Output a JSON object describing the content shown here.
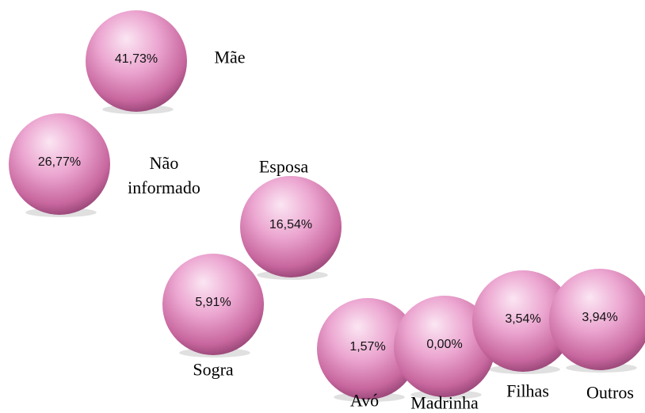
{
  "chart_data": {
    "type": "bubble",
    "categories": [
      "Mãe",
      "Não informado",
      "Esposa",
      "Sogra",
      "Avó",
      "Madrinha",
      "Filhas",
      "Outros"
    ],
    "values": [
      41.73,
      26.77,
      16.54,
      5.91,
      1.57,
      0.0,
      3.54,
      3.94
    ],
    "value_labels": [
      "41,73%",
      "26,77%",
      "16,54%",
      "5,91%",
      "1,57%",
      "0,00%",
      "3,54%",
      "3,94%"
    ],
    "color": "#e89bc9"
  }
}
